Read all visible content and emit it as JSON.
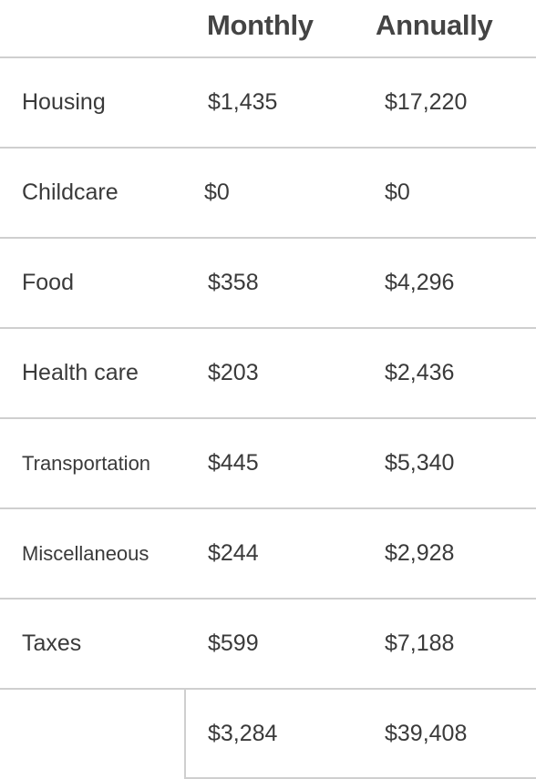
{
  "table": {
    "headers": {
      "category": "",
      "monthly": "Monthly",
      "annually": "Annually"
    },
    "rows": [
      {
        "category": "Housing",
        "monthly": "$1,435",
        "annually": "$17,220"
      },
      {
        "category": "Childcare",
        "monthly": "$0",
        "annually": "$0"
      },
      {
        "category": "Food",
        "monthly": "$358",
        "annually": "$4,296"
      },
      {
        "category": "Health care",
        "monthly": "$203",
        "annually": "$2,436"
      },
      {
        "category": "Transportation",
        "monthly": "$445",
        "annually": "$5,340"
      },
      {
        "category": "Miscellaneous",
        "monthly": "$244",
        "annually": "$2,928"
      },
      {
        "category": "Taxes",
        "monthly": "$599",
        "annually": "$7,188"
      }
    ],
    "total": {
      "monthly": "$3,284",
      "annually": "$39,408"
    }
  }
}
